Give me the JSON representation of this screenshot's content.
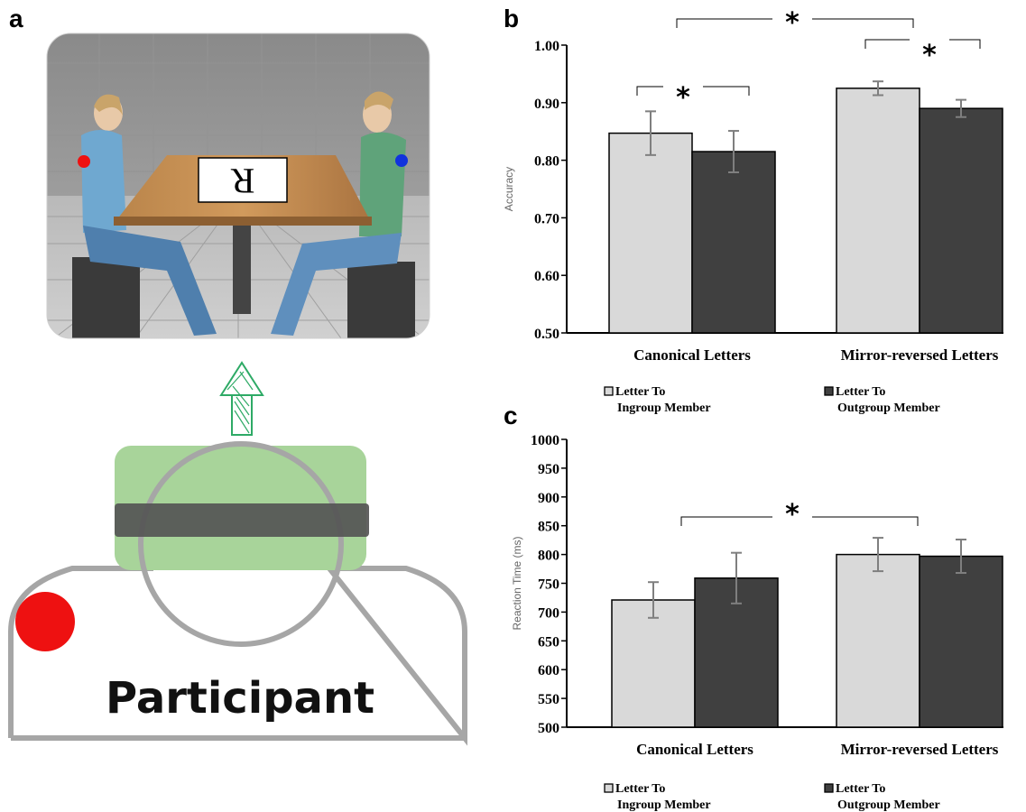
{
  "panels": {
    "a": {
      "label": "a",
      "card_letter": "R",
      "participant_label": "Participant",
      "colors": {
        "red_dot": "#ee1111",
        "blue_dot": "#1133dd",
        "arrow": "#2eaa66",
        "goggles": "#a8d49a",
        "band": "#555555",
        "outline": "#a6a6a6"
      }
    },
    "b": {
      "label": "b"
    },
    "c": {
      "label": "c"
    }
  },
  "chart_data": [
    {
      "type": "bar",
      "panel": "b",
      "categories": [
        "Canonical Letters",
        "Mirror-reversed Letters"
      ],
      "series": [
        {
          "name": "Letter To Ingroup Member",
          "legend_lines": [
            "Letter To",
            "Ingroup Member"
          ],
          "color": "#d9d9d9",
          "values": [
            0.847,
            0.925
          ],
          "error": [
            0.038,
            0.012
          ]
        },
        {
          "name": "Letter To Outgroup Member",
          "legend_lines": [
            "Letter To",
            "Outgroup Member"
          ],
          "color": "#404040",
          "values": [
            0.815,
            0.89
          ],
          "error": [
            0.036,
            0.015
          ]
        }
      ],
      "ylabel": "Accuracy",
      "xlabel": "",
      "ylim": [
        0.5,
        1.0
      ],
      "yticks": [
        "0.50",
        "0.60",
        "0.70",
        "0.80",
        "0.90",
        "1.00"
      ],
      "significance": [
        "*",
        "*",
        "*"
      ]
    },
    {
      "type": "bar",
      "panel": "c",
      "categories": [
        "Canonical Letters",
        "Mirror-reversed Letters"
      ],
      "series": [
        {
          "name": "Letter To Ingroup Member",
          "legend_lines": [
            "Letter To",
            "Ingroup Member"
          ],
          "color": "#d9d9d9",
          "values": [
            721,
            800
          ],
          "error": [
            31,
            29
          ]
        },
        {
          "name": "Letter To Outgroup Member",
          "legend_lines": [
            "Letter To",
            "Outgroup Member"
          ],
          "color": "#404040",
          "values": [
            759,
            797
          ],
          "error": [
            44,
            29
          ]
        }
      ],
      "ylabel": "Reaction Time (ms)",
      "xlabel": "",
      "ylim": [
        500,
        1000
      ],
      "yticks": [
        "500",
        "550",
        "600",
        "650",
        "700",
        "750",
        "800",
        "850",
        "900",
        "950",
        "1000"
      ],
      "significance": [
        "*"
      ]
    }
  ]
}
